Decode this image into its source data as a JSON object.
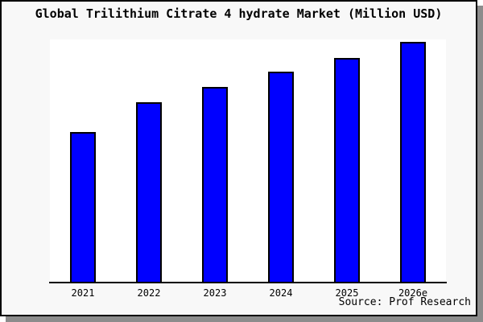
{
  "title": "Global Trilithium Citrate 4 hydrate Market (Million USD)",
  "source": "Source: Prof Research",
  "colors": {
    "bar_fill": "#0000ff",
    "bar_border": "#000000",
    "frame_background": "#f8f8f8",
    "plot_background": "#ffffff",
    "axis": "#000000",
    "shadow": "#8c8c8c",
    "frame_border": "#000000"
  },
  "chart_data": {
    "type": "bar",
    "title": "Global Trilithium Citrate 4 hydrate Market (Million USD)",
    "categories": [
      "2021",
      "2022",
      "2023",
      "2024",
      "2025",
      "2026e"
    ],
    "values": [
      61.8,
      74.1,
      80.4,
      86.7,
      92.4,
      99.0
    ],
    "series_note": "No y-axis ticks or value labels are shown; values are relative bar heights as % of plot height",
    "xlabel": "",
    "ylabel": "",
    "ylim": [
      0,
      100
    ],
    "grid": false,
    "legend": false,
    "bar_color": "#0000ff",
    "annotation": "Source: Prof Research"
  }
}
